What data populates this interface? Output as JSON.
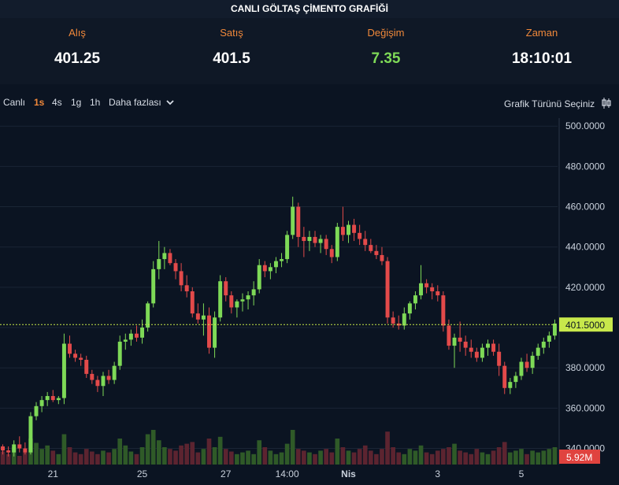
{
  "header": {
    "title": "CANLI GÖLTAŞ ÇİMENTO GRAFİĞİ"
  },
  "quotes": [
    {
      "label": "Alış",
      "value": "401.25"
    },
    {
      "label": "Satış",
      "value": "401.5"
    },
    {
      "label": "Değişim",
      "value": "7.35"
    },
    {
      "label": "Zaman",
      "value": "18:10:01"
    }
  ],
  "toolbar": {
    "intervals": [
      "Canlı",
      "1s",
      "4s",
      "1g",
      "1h"
    ],
    "active_interval": "1s",
    "more_label": "Daha fazlası",
    "chart_type_label": "Grafik Türünü Seçiniz"
  },
  "colors": {
    "up": "#7ed957",
    "down": "#e34a4a",
    "accent": "#f0883a",
    "last_price": "#c8e84b",
    "volume_badge": "#e0433f"
  },
  "chart_data": {
    "type": "candlestick",
    "y_ticks": [
      "500.0000",
      "480.0000",
      "460.0000",
      "440.0000",
      "420.0000",
      "400.0000",
      "380.0000",
      "360.0000",
      "340.0000"
    ],
    "ylim": [
      332,
      504
    ],
    "x_ticks": [
      "21",
      "25",
      "27",
      "14:00",
      "Nis",
      "3",
      "5"
    ],
    "last_price": 401.5,
    "last_price_label": "401.5000",
    "volume_label": "5.92M",
    "candles": [
      [
        341,
        342,
        337,
        339
      ],
      [
        339,
        341,
        336,
        338
      ],
      [
        338,
        344,
        336,
        342
      ],
      [
        342,
        346,
        338,
        340
      ],
      [
        340,
        343,
        337,
        338
      ],
      [
        338,
        358,
        337,
        356
      ],
      [
        356,
        363,
        354,
        361
      ],
      [
        361,
        366,
        358,
        364
      ],
      [
        364,
        368,
        361,
        366
      ],
      [
        366,
        369,
        363,
        364
      ],
      [
        364,
        366,
        362,
        365
      ],
      [
        365,
        397,
        362,
        392
      ],
      [
        392,
        396,
        385,
        387
      ],
      [
        387,
        389,
        383,
        385
      ],
      [
        385,
        387,
        381,
        384
      ],
      [
        384,
        386,
        375,
        377
      ],
      [
        377,
        379,
        372,
        374
      ],
      [
        374,
        376,
        368,
        371
      ],
      [
        371,
        378,
        366,
        376
      ],
      [
        376,
        379,
        372,
        374
      ],
      [
        374,
        383,
        372,
        381
      ],
      [
        381,
        396,
        379,
        393
      ],
      [
        393,
        397,
        389,
        394
      ],
      [
        394,
        399,
        391,
        397
      ],
      [
        397,
        401,
        393,
        395
      ],
      [
        395,
        404,
        392,
        400
      ],
      [
        400,
        413,
        398,
        412
      ],
      [
        412,
        433,
        410,
        429
      ],
      [
        429,
        443,
        424,
        434
      ],
      [
        434,
        440,
        429,
        437
      ],
      [
        437,
        439,
        431,
        432
      ],
      [
        432,
        434,
        424,
        428
      ],
      [
        428,
        432,
        418,
        421
      ],
      [
        421,
        426,
        415,
        418
      ],
      [
        418,
        420,
        405,
        407
      ],
      [
        407,
        412,
        402,
        404
      ],
      [
        404,
        412,
        396,
        406
      ],
      [
        406,
        410,
        387,
        390
      ],
      [
        390,
        408,
        385,
        405
      ],
      [
        405,
        426,
        403,
        423
      ],
      [
        423,
        425,
        413,
        416
      ],
      [
        416,
        418,
        407,
        410
      ],
      [
        410,
        414,
        405,
        413
      ],
      [
        413,
        417,
        408,
        414
      ],
      [
        414,
        418,
        409,
        416
      ],
      [
        416,
        423,
        411,
        419
      ],
      [
        419,
        434,
        417,
        431
      ],
      [
        431,
        433,
        425,
        428
      ],
      [
        428,
        432,
        424,
        430
      ],
      [
        430,
        435,
        427,
        433
      ],
      [
        433,
        437,
        430,
        434
      ],
      [
        434,
        448,
        432,
        446
      ],
      [
        446,
        465,
        444,
        460
      ],
      [
        460,
        462,
        440,
        445
      ],
      [
        445,
        450,
        435,
        443
      ],
      [
        443,
        448,
        438,
        445
      ],
      [
        445,
        448,
        440,
        442
      ],
      [
        442,
        446,
        437,
        444
      ],
      [
        444,
        446,
        436,
        439
      ],
      [
        439,
        441,
        432,
        435
      ],
      [
        435,
        452,
        433,
        450
      ],
      [
        450,
        460,
        443,
        446
      ],
      [
        446,
        453,
        442,
        451
      ],
      [
        451,
        454,
        443,
        447
      ],
      [
        447,
        451,
        441,
        444
      ],
      [
        444,
        448,
        438,
        441
      ],
      [
        441,
        444,
        437,
        438
      ],
      [
        438,
        441,
        434,
        436
      ],
      [
        436,
        440,
        431,
        433
      ],
      [
        433,
        435,
        402,
        405
      ],
      [
        405,
        408,
        400,
        402
      ],
      [
        402,
        406,
        399,
        401
      ],
      [
        401,
        410,
        399,
        407
      ],
      [
        407,
        413,
        404,
        412
      ],
      [
        412,
        418,
        409,
        416
      ],
      [
        416,
        431,
        414,
        422
      ],
      [
        422,
        424,
        417,
        420
      ],
      [
        420,
        422,
        414,
        418
      ],
      [
        418,
        421,
        413,
        416
      ],
      [
        416,
        418,
        398,
        401
      ],
      [
        401,
        404,
        389,
        391
      ],
      [
        391,
        397,
        380,
        395
      ],
      [
        395,
        403,
        388,
        393
      ],
      [
        393,
        396,
        386,
        390
      ],
      [
        390,
        394,
        385,
        388
      ],
      [
        388,
        390,
        383,
        385
      ],
      [
        385,
        392,
        383,
        390
      ],
      [
        390,
        394,
        386,
        392
      ],
      [
        392,
        394,
        386,
        388
      ],
      [
        388,
        392,
        376,
        381
      ],
      [
        381,
        383,
        367,
        370
      ],
      [
        370,
        375,
        367,
        373
      ],
      [
        373,
        378,
        370,
        376
      ],
      [
        376,
        385,
        374,
        383
      ],
      [
        383,
        387,
        378,
        380
      ],
      [
        380,
        388,
        377,
        386
      ],
      [
        386,
        392,
        384,
        390
      ],
      [
        390,
        395,
        387,
        393
      ],
      [
        393,
        398,
        390,
        396
      ],
      [
        396,
        404,
        394,
        402
      ]
    ],
    "volume": [
      15,
      12,
      20,
      10,
      14,
      30,
      25,
      18,
      22,
      16,
      12,
      35,
      20,
      14,
      12,
      18,
      15,
      12,
      16,
      14,
      18,
      30,
      22,
      15,
      12,
      20,
      35,
      40,
      28,
      20,
      18,
      16,
      22,
      24,
      26,
      14,
      18,
      30,
      20,
      32,
      18,
      15,
      12,
      14,
      16,
      12,
      28,
      20,
      16,
      12,
      14,
      24,
      40,
      18,
      16,
      14,
      12,
      16,
      18,
      14,
      30,
      20,
      16,
      14,
      18,
      22,
      16,
      12,
      18,
      38,
      20,
      14,
      12,
      18,
      16,
      22,
      14,
      12,
      16,
      18,
      20,
      24,
      16,
      14,
      12,
      18,
      14,
      12,
      16,
      20,
      26,
      14,
      16,
      18,
      12,
      16,
      14,
      16,
      18,
      20
    ]
  }
}
